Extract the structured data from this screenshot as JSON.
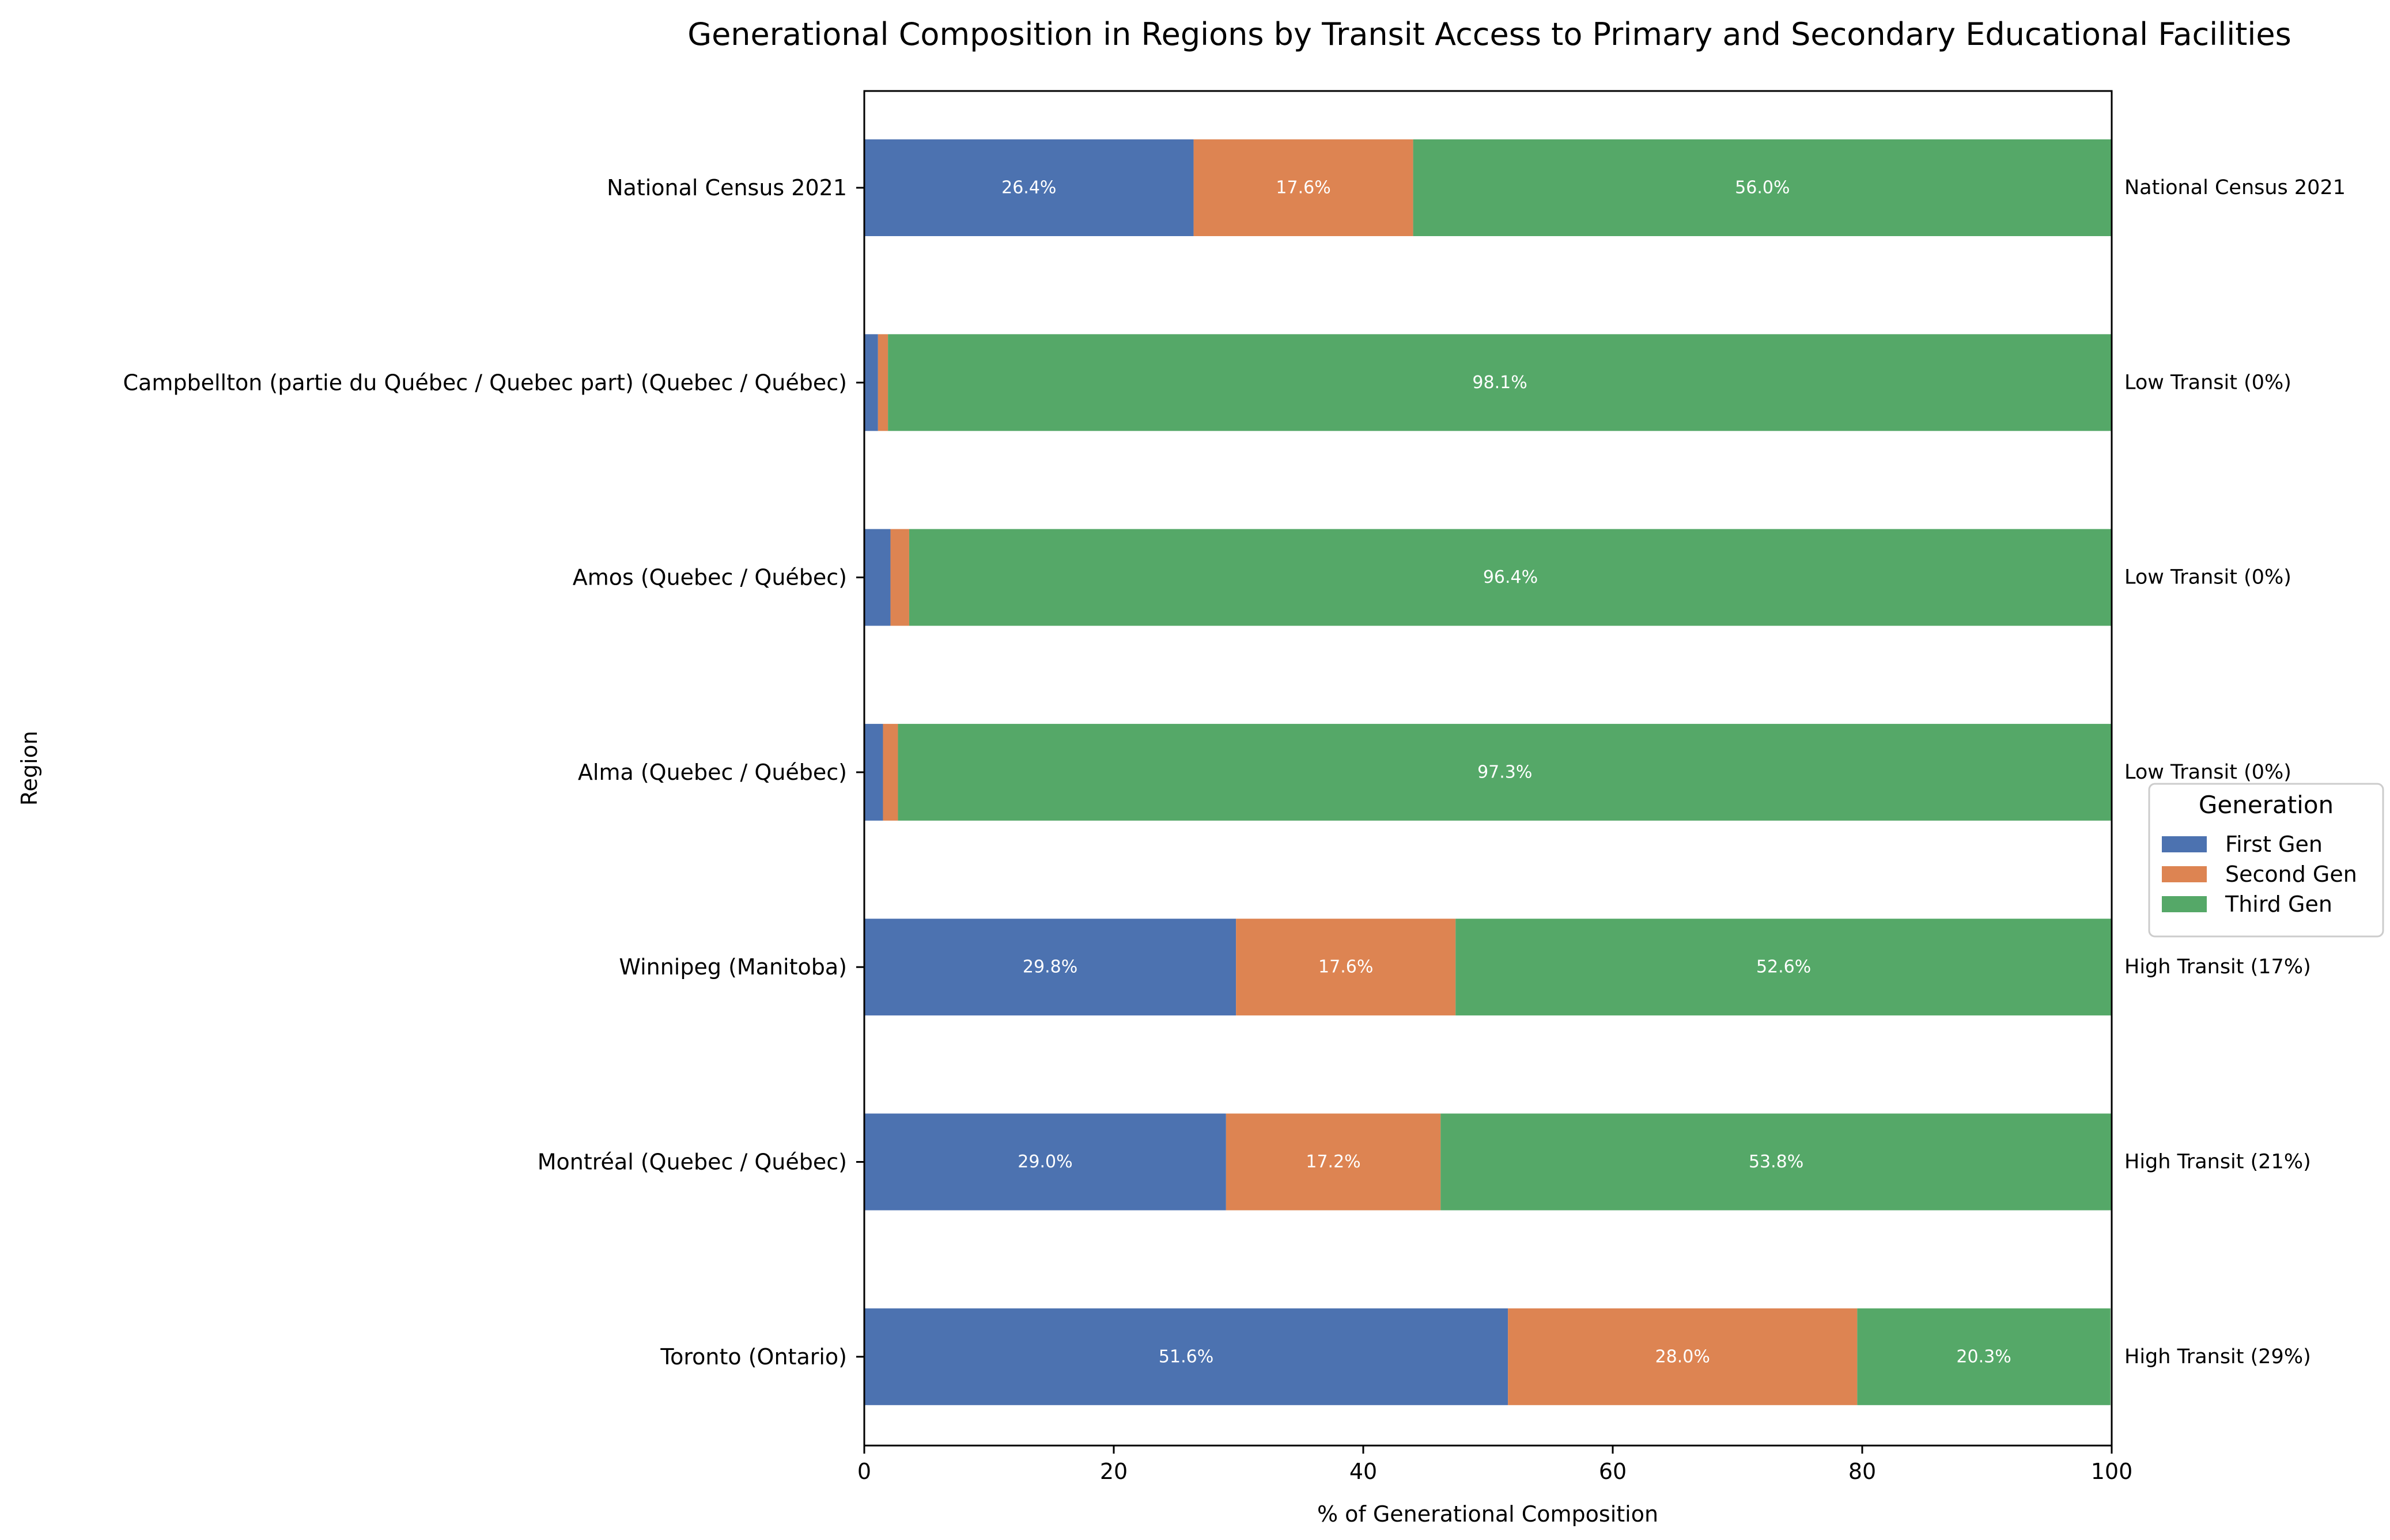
{
  "chart_data": {
    "type": "bar",
    "orientation": "horizontal",
    "stacked": true,
    "title": "Generational Composition in Regions by Transit Access to Primary and Secondary Educational Facilities",
    "xlabel": "% of Generational Composition",
    "ylabel": "Region",
    "xlim": [
      0,
      100
    ],
    "xticks": [
      0,
      20,
      40,
      60,
      80,
      100
    ],
    "grid": false,
    "legend": {
      "title": "Generation",
      "placement": "center-right"
    },
    "categories": [
      "National Census 2021",
      "Campbellton (partie du Québec / Quebec part) (Quebec / Québec)",
      "Amos (Quebec / Québec)",
      "Alma (Quebec / Québec)",
      "Winnipeg (Manitoba)",
      "Montréal (Quebec / Québec)",
      "Toronto (Ontario)"
    ],
    "right_labels": [
      "National Census 2021",
      "Low Transit (0%)",
      "Low Transit (0%)",
      "Low Transit (0%)",
      "High Transit (17%)",
      "High Transit (21%)",
      "High Transit (29%)"
    ],
    "series": [
      {
        "name": "First Gen",
        "color": "#4c72b0",
        "values": [
          26.4,
          1.1,
          2.1,
          1.5,
          29.8,
          29.0,
          51.6
        ],
        "labels": [
          "26.4%",
          "",
          "",
          "",
          "29.8%",
          "29.0%",
          "51.6%"
        ]
      },
      {
        "name": "Second Gen",
        "color": "#dd8452",
        "values": [
          17.6,
          0.8,
          1.5,
          1.2,
          17.6,
          17.2,
          28.0
        ],
        "labels": [
          "17.6%",
          "",
          "",
          "",
          "17.6%",
          "17.2%",
          "28.0%"
        ]
      },
      {
        "name": "Third Gen",
        "color": "#55a868",
        "values": [
          56.0,
          98.1,
          96.4,
          97.3,
          52.6,
          53.8,
          20.3
        ],
        "labels": [
          "56.0%",
          "98.1%",
          "96.4%",
          "97.3%",
          "52.6%",
          "53.8%",
          "20.3%"
        ]
      }
    ]
  }
}
